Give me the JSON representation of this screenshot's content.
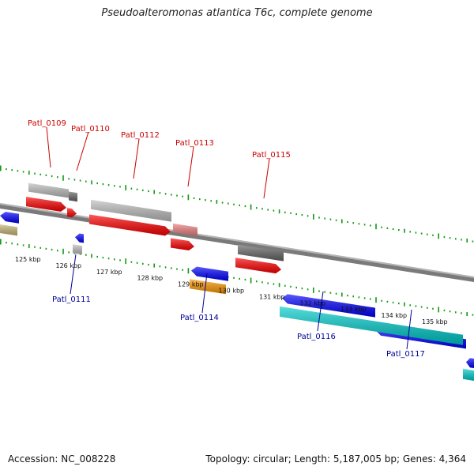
{
  "title": "Pseudoalteromonas atlantica T6c, complete genome",
  "footer": {
    "accession": "Accession: NC_008228",
    "summary": "Topology: circular; Length: 5,187,005 bp; Genes: 4,364"
  },
  "colors": {
    "forward_cds": "#ff0000",
    "reverse_cds": "#0000ff",
    "grey_feature": "#bfbfbf",
    "dark_feature": "#666666",
    "pink_feature": "#f08080",
    "orange_feature": "#ff9900",
    "cyan_feature": "#00cccc",
    "olive_feature": "#c8b878",
    "tick": "#119911",
    "forward_label": "#cc0000",
    "reverse_label": "#000099"
  },
  "scale_labels": [
    "125 kbp",
    "126 kbp",
    "127 kbp",
    "128 kbp",
    "129 kbp",
    "130 kbp",
    "131 kbp",
    "132 kbp",
    "133 kbp",
    "134 kbp",
    "135 kbp"
  ],
  "forward_genes": [
    {
      "label": "Patl_0109"
    },
    {
      "label": "Patl_0110"
    },
    {
      "label": "Patl_0112"
    },
    {
      "label": "Patl_0113"
    },
    {
      "label": "Patl_0115"
    }
  ],
  "reverse_genes": [
    {
      "label": "Patl_0111"
    },
    {
      "label": "Patl_0114"
    },
    {
      "label": "Patl_0116"
    },
    {
      "label": "Patl_0117"
    }
  ]
}
